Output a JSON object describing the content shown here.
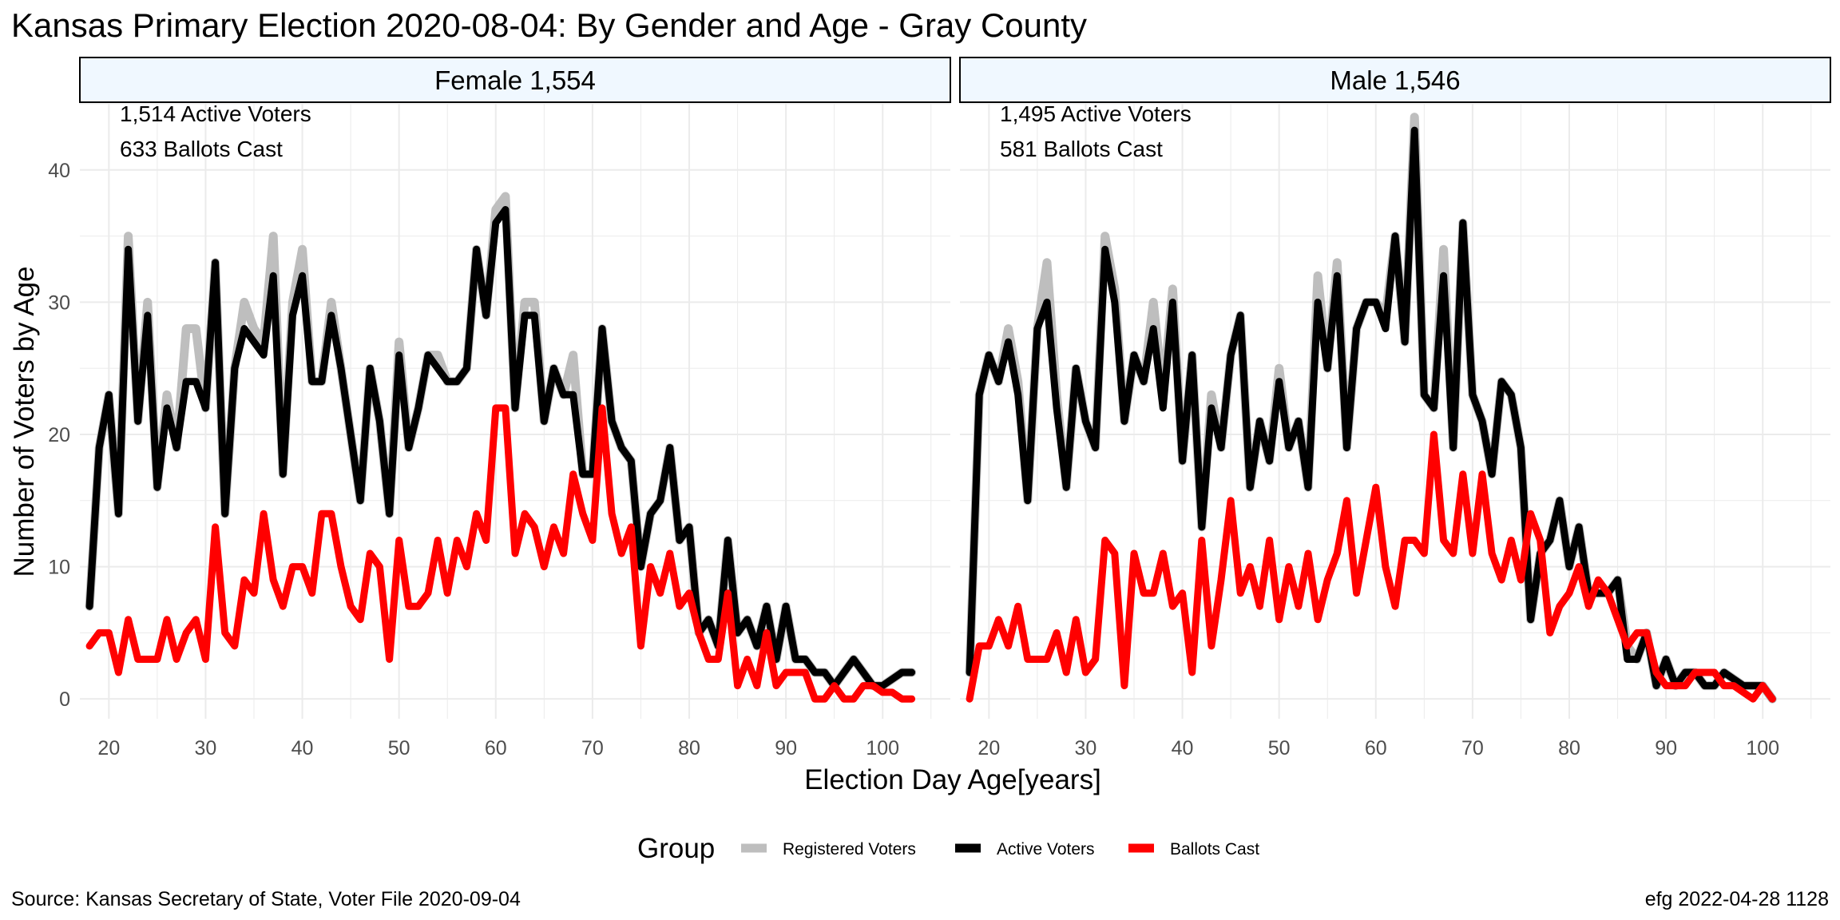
{
  "title": "Kansas Primary Election 2020-08-04:  By Gender and Age - Gray County",
  "caption_left": "Source:  Kansas Secretary of State, Voter File  2020-09-04",
  "caption_right": "efg 2022-04-28 1128",
  "colors": {
    "registered": "#bebebe",
    "active": "#000000",
    "ballots": "#ff0000",
    "strip_fill": "#f0f8ff",
    "grid": "#ebebeb"
  },
  "chart_data": [
    {
      "type": "line",
      "panel": "Female 1,554",
      "annotations": [
        "1,514 Active Voters",
        "633 Ballots Cast"
      ],
      "xlabel": "Election Day Age[years]",
      "ylabel": "Number of Voters by Age",
      "xlim": [
        17,
        107
      ],
      "ylim": [
        -1.5,
        45
      ],
      "xticks": [
        20,
        30,
        40,
        50,
        60,
        70,
        80,
        90,
        100
      ],
      "yticks": [
        0,
        10,
        20,
        30,
        40
      ],
      "grid": true,
      "legend": {
        "title": "Group",
        "position": "bottom"
      },
      "x_start": 18,
      "series": [
        {
          "name": "Registered Voters",
          "color": "#bebebe",
          "values": [
            7,
            19,
            23,
            14,
            35,
            21,
            30,
            16,
            23,
            19,
            28,
            28,
            22,
            33,
            14,
            25,
            30,
            28,
            27,
            35,
            17,
            30,
            34,
            24,
            24,
            30,
            25,
            20,
            15,
            25,
            21,
            14,
            27,
            19,
            22,
            26,
            26,
            24,
            24,
            25,
            34,
            29,
            37,
            38,
            22,
            30,
            30,
            21,
            25,
            23,
            26,
            17,
            17,
            28,
            21,
            19,
            18,
            10,
            14,
            15,
            19,
            12,
            13,
            5,
            6,
            4,
            12,
            5,
            6,
            4,
            7,
            3,
            7,
            3,
            3,
            2,
            2,
            1,
            2,
            3,
            2,
            1,
            1,
            1.5,
            2,
            2
          ]
        },
        {
          "name": "Active Voters",
          "color": "#000000",
          "values": [
            7,
            19,
            23,
            14,
            34,
            21,
            29,
            16,
            22,
            19,
            24,
            24,
            22,
            33,
            14,
            25,
            28,
            27,
            26,
            32,
            17,
            29,
            32,
            24,
            24,
            29,
            25,
            20,
            15,
            25,
            21,
            14,
            26,
            19,
            22,
            26,
            25,
            24,
            24,
            25,
            34,
            29,
            36,
            37,
            22,
            29,
            29,
            21,
            25,
            23,
            23,
            17,
            17,
            28,
            21,
            19,
            18,
            10,
            14,
            15,
            19,
            12,
            13,
            5,
            6,
            4,
            12,
            5,
            6,
            4,
            7,
            3,
            7,
            3,
            3,
            2,
            2,
            1,
            2,
            3,
            2,
            1,
            1,
            1.5,
            2,
            2
          ]
        },
        {
          "name": "Ballots Cast",
          "color": "#ff0000",
          "values": [
            4,
            5,
            5,
            2,
            6,
            3,
            3,
            3,
            6,
            3,
            5,
            6,
            3,
            13,
            5,
            4,
            9,
            8,
            14,
            9,
            7,
            10,
            10,
            8,
            14,
            14,
            10,
            7,
            6,
            11,
            10,
            3,
            12,
            7,
            7,
            8,
            12,
            8,
            12,
            10,
            14,
            12,
            22,
            22,
            11,
            14,
            13,
            10,
            13,
            11,
            17,
            14,
            12,
            22,
            14,
            11,
            13,
            4,
            10,
            8,
            11,
            7,
            8,
            5,
            3,
            3,
            8,
            1,
            3,
            1,
            5,
            1,
            2,
            2,
            2,
            0,
            0,
            1,
            0,
            0,
            1,
            1,
            0.5,
            0.5,
            0,
            0
          ]
        }
      ]
    },
    {
      "type": "line",
      "panel": "Male 1,546",
      "annotations": [
        "1,495 Active Voters",
        "581 Ballots Cast"
      ],
      "xlabel": "Election Day Age[years]",
      "ylabel": "Number of Voters by Age",
      "xlim": [
        17,
        107
      ],
      "ylim": [
        -1.5,
        45
      ],
      "xticks": [
        20,
        30,
        40,
        50,
        60,
        70,
        80,
        90,
        100
      ],
      "yticks": [
        0,
        10,
        20,
        30,
        40
      ],
      "grid": true,
      "x_start": 18,
      "series": [
        {
          "name": "Registered Voters",
          "color": "#bebebe",
          "values": [
            2,
            23,
            26,
            24,
            28,
            24,
            15,
            28,
            33,
            23,
            16,
            25,
            21,
            19,
            35,
            31,
            21,
            26,
            24,
            30,
            23,
            31,
            18,
            26,
            13,
            23,
            19,
            26,
            29,
            16,
            21,
            18,
            25,
            19,
            21,
            16,
            32,
            25,
            33,
            19,
            28,
            30,
            30,
            29,
            35,
            27,
            44,
            23,
            22,
            34,
            19,
            36,
            23,
            21,
            17,
            24,
            23,
            19,
            6,
            11,
            12,
            15,
            10,
            13,
            8,
            8,
            8,
            9,
            4,
            3,
            5,
            1,
            3,
            1,
            2,
            2,
            1,
            1,
            2,
            1.5,
            1,
            1,
            1,
            0
          ]
        },
        {
          "name": "Active Voters",
          "color": "#000000",
          "values": [
            2,
            23,
            26,
            24,
            27,
            23,
            15,
            28,
            30,
            22,
            16,
            25,
            21,
            19,
            34,
            30,
            21,
            26,
            24,
            28,
            22,
            30,
            18,
            26,
            13,
            22,
            19,
            26,
            29,
            16,
            21,
            18,
            24,
            19,
            21,
            16,
            30,
            25,
            32,
            19,
            28,
            30,
            30,
            28,
            35,
            27,
            43,
            23,
            22,
            32,
            19,
            36,
            23,
            21,
            17,
            24,
            23,
            19,
            6,
            11,
            12,
            15,
            10,
            13,
            8,
            8,
            8,
            9,
            3,
            3,
            5,
            1,
            3,
            1,
            2,
            2,
            1,
            1,
            2,
            1.5,
            1,
            1,
            1,
            0
          ]
        },
        {
          "name": "Ballots Cast",
          "color": "#ff0000",
          "values": [
            0,
            4,
            4,
            6,
            4,
            7,
            3,
            3,
            3,
            5,
            2,
            6,
            2,
            3,
            12,
            11,
            1,
            11,
            8,
            8,
            11,
            7,
            8,
            2,
            12,
            4,
            9,
            15,
            8,
            10,
            7,
            12,
            6,
            10,
            7,
            11,
            6,
            9,
            11,
            15,
            8,
            12,
            16,
            10,
            7,
            12,
            12,
            11,
            20,
            12,
            11,
            17,
            11,
            17,
            11,
            9,
            12,
            9,
            14,
            12,
            5,
            7,
            8,
            10,
            7,
            9,
            8,
            6,
            4,
            5,
            5,
            2,
            1,
            1,
            1,
            2,
            2,
            2,
            1,
            1,
            0.5,
            0,
            1,
            0
          ]
        }
      ]
    }
  ]
}
